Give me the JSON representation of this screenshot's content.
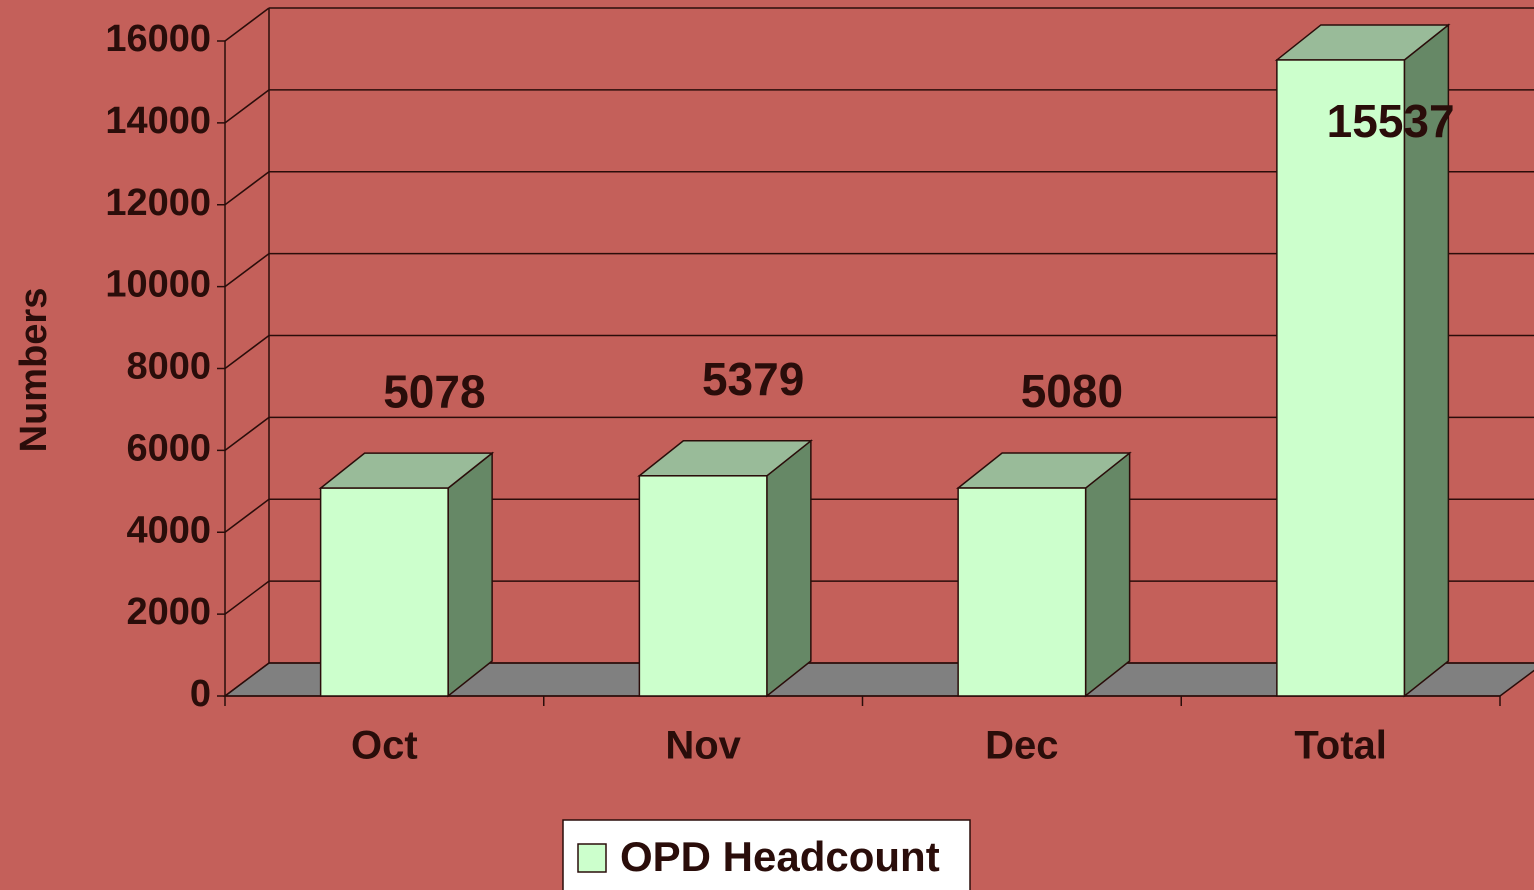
{
  "chart_data": {
    "type": "bar3d",
    "y_label": "Numbers",
    "categories": [
      "Oct",
      "Nov",
      "Dec",
      "Total"
    ],
    "series": [
      {
        "name": "OPD Headcount",
        "color": "#ccffcc",
        "values": [
          5078,
          5379,
          5080,
          15537
        ]
      }
    ],
    "ylim": [
      0,
      16000
    ],
    "yticks": [
      0,
      2000,
      4000,
      6000,
      8000,
      10000,
      12000,
      14000,
      16000
    ],
    "grid": true,
    "legend": "bottom"
  }
}
